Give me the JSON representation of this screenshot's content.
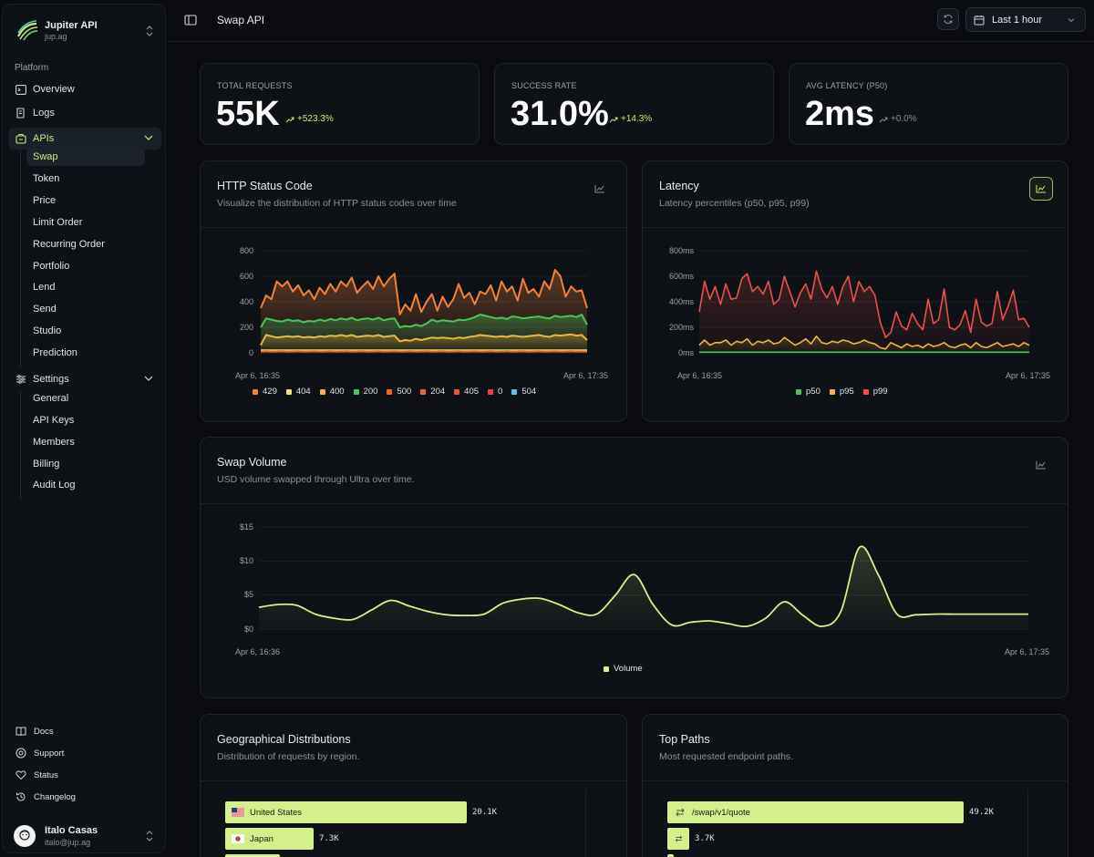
{
  "org": {
    "name": "Jupiter API",
    "sub": "jup.ag"
  },
  "sidebar": {
    "group_label": "Platform",
    "items": [
      {
        "label": "Overview",
        "icon": "terminal-icon"
      },
      {
        "label": "Logs",
        "icon": "logs-icon"
      },
      {
        "label": "APIs",
        "icon": "api-icon"
      }
    ],
    "api_items": [
      "Swap",
      "Token",
      "Price",
      "Limit Order",
      "Recurring Order",
      "Portfolio",
      "Lend",
      "Send",
      "Studio",
      "Prediction"
    ],
    "settings_label": "Settings",
    "settings_items": [
      "General",
      "API Keys",
      "Members",
      "Billing",
      "Audit Log"
    ],
    "footer": [
      "Docs",
      "Support",
      "Status",
      "Changelog"
    ],
    "user": {
      "name": "Italo Casas",
      "email": "italo@jup.ag"
    }
  },
  "header": {
    "title": "Swap API",
    "range": "Last 1 hour"
  },
  "stats": [
    {
      "label": "TOTAL REQUESTS",
      "value": "55K",
      "delta": "+523.3%"
    },
    {
      "label": "SUCCESS RATE",
      "value": "31.0%",
      "delta": "+14.3%"
    },
    {
      "label": "AVG LATENCY (P50)",
      "value": "2ms",
      "delta": "+0.0%"
    }
  ],
  "cards": {
    "http": {
      "title": "HTTP Status Code",
      "desc": "Visualize the distribution of HTTP status codes over time"
    },
    "latency": {
      "title": "Latency",
      "desc": "Latency percentiles (p50, p95, p99)"
    },
    "volume": {
      "title": "Swap Volume",
      "desc": "USD volume swapped through Ultra over time."
    },
    "geo": {
      "title": "Geographical Distributions",
      "desc": "Distribution of requests by region."
    },
    "paths": {
      "title": "Top Paths",
      "desc": "Most requested endpoint paths."
    }
  },
  "colors": {
    "accent": "#c7ea7c",
    "bar": "#d4f08c",
    "p50": "#4cc35a",
    "p95": "#f0b43c",
    "p99": "#e8504a"
  },
  "chart_data": [
    {
      "type": "area",
      "x_start": "Apr 6, 16:35",
      "x_end": "Apr 6, 17:35",
      "yticks": [
        "800",
        "600",
        "400",
        "200",
        "0"
      ],
      "ylim": [
        0,
        800
      ],
      "legend": [
        {
          "name": "429",
          "color": "#f0823c"
        },
        {
          "name": "404",
          "color": "#e8e870"
        },
        {
          "name": "400",
          "color": "#f0b43c"
        },
        {
          "name": "200",
          "color": "#4cc35a"
        },
        {
          "name": "500",
          "color": "#f0602e"
        },
        {
          "name": "204",
          "color": "#e5683c"
        },
        {
          "name": "405",
          "color": "#e0563a"
        },
        {
          "name": "0",
          "color": "#e04848"
        },
        {
          "name": "504",
          "color": "#56c8e8"
        }
      ],
      "series": [
        {
          "name": "429",
          "color": "#f0823c",
          "values": [
            350,
            450,
            420,
            560,
            520,
            560,
            480,
            530,
            450,
            490,
            420,
            510,
            460,
            540,
            480,
            560,
            520,
            590,
            470,
            520,
            560,
            500,
            600,
            520,
            580,
            620,
            300,
            380,
            330,
            460,
            320,
            400,
            460,
            330,
            440,
            360,
            420,
            540,
            430,
            470,
            380,
            480,
            460,
            530,
            410,
            560,
            480,
            520,
            410,
            580,
            470,
            500,
            440,
            560,
            500,
            650,
            600,
            440,
            520,
            480,
            490,
            350
          ]
        },
        {
          "name": "200",
          "color": "#4cc35a",
          "values": [
            200,
            270,
            260,
            250,
            245,
            260,
            250,
            255,
            240,
            250,
            245,
            260,
            250,
            265,
            255,
            270,
            260,
            275,
            255,
            265,
            270,
            260,
            275,
            255,
            265,
            270,
            200,
            210,
            205,
            220,
            210,
            230,
            260,
            245,
            255,
            250,
            245,
            260,
            255,
            265,
            280,
            300,
            290,
            280,
            270,
            275,
            265,
            285,
            280,
            270,
            275,
            280,
            285,
            275,
            270,
            290,
            280,
            285,
            290,
            280,
            300,
            220
          ]
        },
        {
          "name": "400",
          "color": "#f0b43c",
          "values": [
            60,
            140,
            130,
            120,
            125,
            130,
            125,
            130,
            120,
            125,
            120,
            130,
            125,
            135,
            130,
            140,
            130,
            140,
            125,
            130,
            135,
            130,
            140,
            125,
            130,
            135,
            90,
            100,
            95,
            110,
            100,
            110,
            120,
            115,
            120,
            115,
            110,
            120,
            115,
            125,
            130,
            140,
            135,
            130,
            125,
            130,
            125,
            135,
            130,
            125,
            130,
            135,
            140,
            130,
            125,
            140,
            135,
            140,
            145,
            135,
            140,
            100
          ]
        },
        {
          "name": "404",
          "color": "#e8e870",
          "values": [
            20,
            20,
            20,
            20,
            20,
            20,
            20,
            20,
            20,
            20,
            20,
            20,
            20,
            20,
            20,
            20,
            20,
            20,
            20,
            20,
            20,
            20,
            20,
            20,
            20,
            20,
            20,
            20,
            20,
            20,
            20,
            20,
            20,
            20,
            20,
            20,
            20,
            20,
            20,
            20,
            20,
            20,
            20,
            20,
            20,
            20,
            20,
            20,
            20,
            20,
            20,
            20,
            20,
            20,
            20,
            20,
            20,
            20,
            20,
            20,
            20,
            20
          ]
        },
        {
          "name": "500",
          "color": "#f0602e",
          "values": [
            10,
            12,
            10,
            11,
            12,
            10,
            11,
            12,
            10,
            11,
            12,
            10,
            11,
            12,
            10,
            11,
            12,
            10,
            11,
            12,
            10,
            11,
            12,
            10,
            11,
            12,
            10,
            11,
            12,
            10,
            11,
            12,
            10,
            11,
            12,
            10,
            11,
            12,
            10,
            11,
            12,
            10,
            11,
            12,
            10,
            11,
            12,
            10,
            11,
            12,
            10,
            11,
            12,
            10,
            11,
            12,
            10,
            11,
            12,
            10,
            11,
            10
          ]
        }
      ]
    },
    {
      "type": "line",
      "x_start": "Apr 6, 16:35",
      "x_end": "Apr 6, 17:35",
      "yticks": [
        "800ms",
        "600ms",
        "400ms",
        "200ms",
        "0ms"
      ],
      "ylim": [
        0,
        800
      ],
      "legend": [
        {
          "name": "p50",
          "color": "#4cc35a"
        },
        {
          "name": "p95",
          "color": "#f0b43c"
        },
        {
          "name": "p99",
          "color": "#e8504a"
        }
      ],
      "series": [
        {
          "name": "p99",
          "color": "#e8504a",
          "values": [
            320,
            560,
            420,
            520,
            380,
            540,
            420,
            430,
            580,
            620,
            480,
            520,
            460,
            560,
            380,
            420,
            600,
            480,
            360,
            470,
            540,
            420,
            640,
            500,
            430,
            520,
            380,
            520,
            600,
            400,
            560,
            480,
            520,
            450,
            240,
            120,
            160,
            320,
            210,
            180,
            310,
            230,
            180,
            420,
            230,
            260,
            500,
            200,
            180,
            220,
            330,
            160,
            420,
            240,
            210,
            230,
            480,
            260,
            360,
            490,
            260,
            270,
            200
          ]
        },
        {
          "name": "p95",
          "color": "#f0b43c",
          "values": [
            60,
            100,
            60,
            80,
            80,
            100,
            60,
            90,
            80,
            110,
            60,
            90,
            80,
            100,
            70,
            80,
            120,
            90,
            60,
            80,
            110,
            70,
            130,
            80,
            70,
            90,
            80,
            100,
            90,
            70,
            80,
            100,
            80,
            70,
            40,
            30,
            80,
            60,
            40,
            70,
            50,
            60,
            40,
            70,
            50,
            60,
            80,
            50,
            40,
            60,
            70,
            40,
            80,
            50,
            40,
            60,
            80,
            50,
            60,
            70,
            50,
            80,
            60
          ]
        },
        {
          "name": "p50",
          "color": "#4cc35a",
          "values": [
            5,
            5,
            5,
            5,
            5,
            5,
            5,
            5,
            5,
            5,
            5,
            5,
            5,
            5,
            5,
            5,
            5,
            5,
            5,
            5,
            5,
            5,
            5,
            5,
            5,
            5,
            5,
            5,
            5,
            5,
            5,
            5,
            5,
            5,
            5,
            5,
            5,
            5,
            5,
            5,
            5,
            5,
            5,
            5,
            5,
            5,
            5,
            5,
            5,
            5,
            5,
            5,
            5,
            5,
            5,
            5,
            5,
            5,
            5,
            5,
            5,
            5,
            5
          ]
        }
      ]
    },
    {
      "type": "area",
      "x_start": "Apr 6, 16:36",
      "x_end": "Apr 6, 17:35",
      "yticks": [
        "$15",
        "$10",
        "$5",
        "$0"
      ],
      "ylim": [
        0,
        15
      ],
      "legend": [
        {
          "name": "Volume",
          "color": "#d4f08c"
        }
      ],
      "series": [
        {
          "name": "Volume",
          "color": "#d4f08c",
          "values": [
            3.2,
            3.6,
            3.5,
            2.2,
            1.6,
            1.4,
            2.8,
            4.2,
            3.4,
            2.6,
            2.1,
            2.0,
            2.2,
            3.8,
            4.4,
            4.5,
            3.6,
            2.4,
            2.2,
            5.0,
            8.0,
            3.6,
            0.6,
            1.0,
            1.2,
            0.8,
            0.4,
            1.6,
            4.0,
            2.0,
            0.4,
            2.5,
            12.0,
            8.0,
            2.2,
            2.1,
            2.2,
            2.2,
            2.2,
            2.2,
            2.2,
            2.2
          ]
        }
      ]
    }
  ],
  "geo": [
    {
      "label": "United States",
      "value": "20.1K",
      "fraction": 1.0,
      "flag": "us-flag-icon"
    },
    {
      "label": "Japan",
      "value": "7.3K",
      "fraction": 0.365,
      "flag": "jp-flag-icon"
    },
    {
      "label": "",
      "value": "",
      "fraction": 0.225,
      "flag": ""
    }
  ],
  "paths": [
    {
      "label": "/swap/v1/quote",
      "value": "49.2K",
      "fraction": 1.0
    },
    {
      "label": "",
      "value": "3.7K",
      "fraction": 0.075
    },
    {
      "label": "",
      "value": "",
      "fraction": 0.02
    }
  ]
}
